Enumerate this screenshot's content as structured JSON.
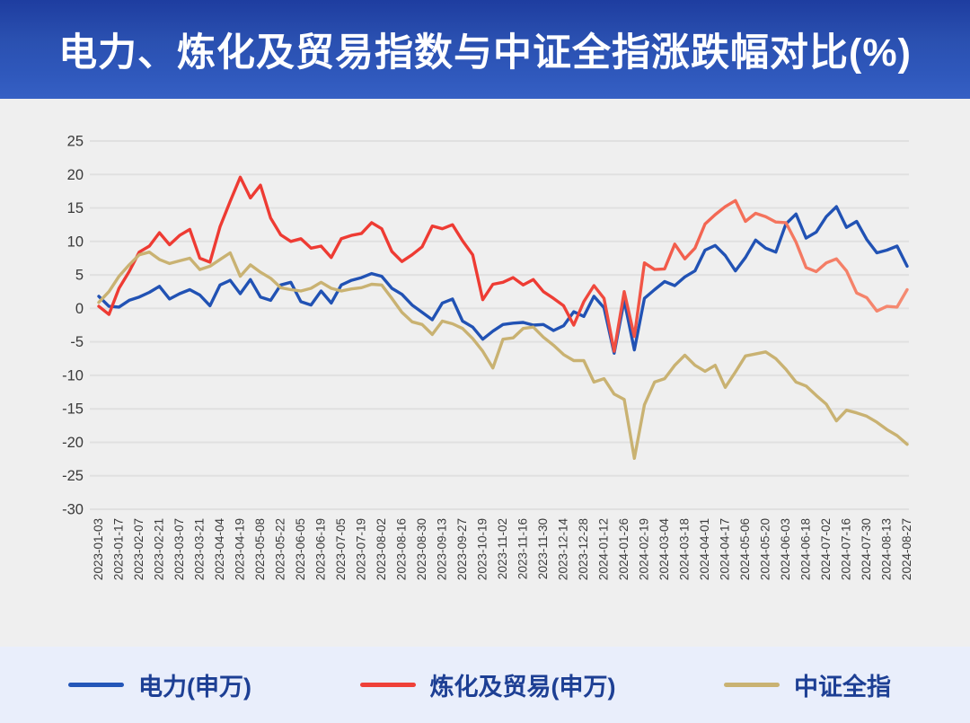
{
  "title": "电力、炼化及贸易指数与中证全指涨跌幅对比(%)",
  "colors": {
    "header_gradient_top": "#1e3da0",
    "header_gradient_bottom": "#3660c4",
    "chart_background": "#efefef",
    "gridline": "#e0e0e0",
    "axis_text": "#3c3c3c",
    "footer_background": "#e9eefb",
    "legend_text": "#1d3f94"
  },
  "legend": {
    "items": [
      {
        "label": "电力(申万)",
        "color": "#2456b8"
      },
      {
        "label": "炼化及贸易(申万)",
        "color": "#ef4038"
      },
      {
        "label": "中证全指",
        "color": "#c9b272"
      }
    ]
  },
  "chart_data": {
    "type": "line",
    "title": "电力、炼化及贸易指数与中证全指涨跌幅对比(%)",
    "xlabel": "",
    "ylabel": "",
    "ylim": [
      -30,
      25
    ],
    "y_ticks": [
      25,
      20,
      15,
      10,
      5,
      0,
      -5,
      -10,
      -15,
      -20,
      -25,
      -30
    ],
    "grid": true,
    "legend_position": "bottom",
    "x_labels": [
      "2023-01-03",
      "2023-01-17",
      "2023-02-07",
      "2023-02-21",
      "2023-03-07",
      "2023-03-21",
      "2023-04-04",
      "2023-04-19",
      "2023-05-08",
      "2023-05-22",
      "2023-06-05",
      "2023-06-19",
      "2023-07-05",
      "2023-07-19",
      "2023-08-02",
      "2023-08-16",
      "2023-08-30",
      "2023-09-13",
      "2023-09-27",
      "2023-10-19",
      "2023-11-02",
      "2023-11-16",
      "2023-11-30",
      "2023-12-14",
      "2023-12-28",
      "2024-01-12",
      "2024-01-26",
      "2024-02-19",
      "2024-03-04",
      "2024-03-18",
      "2024-04-01",
      "2024-04-17",
      "2024-05-06",
      "2024-05-20",
      "2024-06-03",
      "2024-06-18",
      "2024-07-02",
      "2024-07-16",
      "2024-07-30",
      "2024-08-13",
      "2024-08-27"
    ],
    "samples_per_label_interval": 2,
    "series": [
      {
        "name": "电力(申万)",
        "color": "#2152b4",
        "values": [
          1.8,
          0.3,
          0.2,
          1.2,
          1.7,
          2.4,
          3.3,
          1.4,
          2.2,
          2.8,
          2.0,
          0.4,
          3.5,
          4.2,
          2.2,
          4.3,
          1.7,
          1.2,
          3.5,
          3.9,
          1.0,
          0.5,
          2.6,
          0.8,
          3.5,
          4.2,
          4.6,
          5.2,
          4.8,
          3.0,
          2.1,
          0.5,
          -0.6,
          -1.7,
          0.8,
          1.4,
          -1.9,
          -2.8,
          -4.6,
          -3.4,
          -2.4,
          -2.2,
          -2.1,
          -2.5,
          -2.4,
          -3.3,
          -2.6,
          -0.5,
          -1.2,
          1.8,
          0.1,
          -6.7,
          1.2,
          -6.2,
          1.5,
          2.8,
          4.0,
          3.4,
          4.7,
          5.6,
          8.7,
          9.4,
          7.9,
          5.6,
          7.6,
          10.2,
          9.0,
          8.4,
          12.6,
          14.1,
          10.5,
          11.4,
          13.7,
          15.2,
          12.1,
          13.0,
          10.3,
          8.3,
          8.7,
          9.3,
          6.3
        ]
      },
      {
        "name": "炼化及贸易(申万)",
        "color": "#ee3b33",
        "gradient_colors": [
          "#ee3b33",
          "#ee3b33",
          "#f4705a",
          "#f58b72"
        ],
        "gradient_stops": [
          0,
          0.55,
          0.8,
          1
        ],
        "values": [
          0.3,
          -0.9,
          3.0,
          5.5,
          8.4,
          9.3,
          11.3,
          9.5,
          10.9,
          11.8,
          7.5,
          6.9,
          12.2,
          16.0,
          19.6,
          16.5,
          18.4,
          13.5,
          11.0,
          10.0,
          10.4,
          9.0,
          9.3,
          7.6,
          10.4,
          10.9,
          11.2,
          12.8,
          11.9,
          8.5,
          7.0,
          8.0,
          9.2,
          12.3,
          11.9,
          12.5,
          10.1,
          8.0,
          1.3,
          3.6,
          3.9,
          4.6,
          3.5,
          4.3,
          2.5,
          1.5,
          0.4,
          -2.5,
          1.0,
          3.4,
          1.5,
          -6.4,
          2.5,
          -4.2,
          6.8,
          5.8,
          5.9,
          9.6,
          7.4,
          9.0,
          12.6,
          14.0,
          15.2,
          16.1,
          13.0,
          14.2,
          13.7,
          12.9,
          12.8,
          9.9,
          6.1,
          5.5,
          6.8,
          7.4,
          5.6,
          2.3,
          1.6,
          -0.4,
          0.3,
          0.2,
          2.8
        ]
      },
      {
        "name": "中证全指",
        "color": "#c9b272",
        "values": [
          0.9,
          2.5,
          4.8,
          6.5,
          8.0,
          8.4,
          7.3,
          6.7,
          7.1,
          7.5,
          5.8,
          6.3,
          7.3,
          8.3,
          4.8,
          6.5,
          5.4,
          4.5,
          3.1,
          2.8,
          2.6,
          3.0,
          3.9,
          3.0,
          2.6,
          2.9,
          3.1,
          3.6,
          3.5,
          1.5,
          -0.6,
          -2.0,
          -2.4,
          -3.9,
          -1.9,
          -2.3,
          -3.0,
          -4.5,
          -6.4,
          -8.9,
          -4.6,
          -4.4,
          -3.0,
          -2.8,
          -4.3,
          -5.5,
          -6.9,
          -7.8,
          -7.8,
          -11.0,
          -10.5,
          -12.8,
          -13.6,
          -22.4,
          -14.4,
          -11.0,
          -10.5,
          -8.5,
          -7.0,
          -8.5,
          -9.4,
          -8.5,
          -11.8,
          -9.5,
          -7.1,
          -6.8,
          -6.5,
          -7.5,
          -9.1,
          -11.0,
          -11.6,
          -13.0,
          -14.3,
          -16.8,
          -15.2,
          -15.6,
          -16.1,
          -17.0,
          -18.1,
          -19.0,
          -20.3
        ]
      }
    ]
  }
}
